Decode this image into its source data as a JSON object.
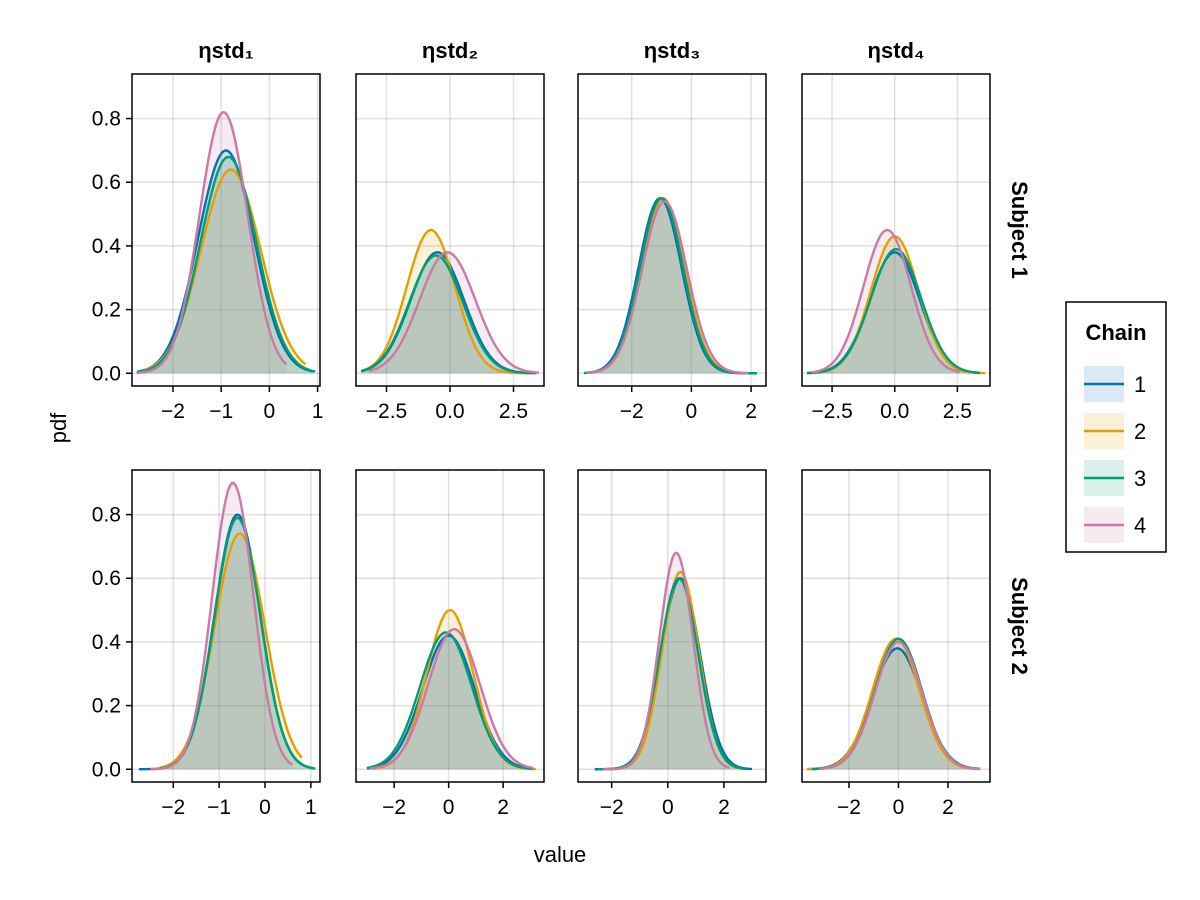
{
  "chart_data": {
    "type": "area",
    "xlabel": "value",
    "ylabel": "pdf",
    "legend": {
      "title": "Chain",
      "position": "right",
      "entries": [
        "1",
        "2",
        "3",
        "4"
      ]
    },
    "colors": {
      "1": "#0072b2",
      "2": "#e69f00",
      "3": "#009e73",
      "4": "#cc79a7"
    },
    "grid": true,
    "columns": [
      "ηstd₁",
      "ηstd₂",
      "ηstd₃",
      "ηstd₄"
    ],
    "rows": [
      "Subject 1",
      "Subject 2"
    ],
    "y_ticks": [
      "0.0",
      "0.2",
      "0.4",
      "0.6",
      "0.8"
    ],
    "ylim": [
      -0.04,
      0.94
    ],
    "panels": [
      {
        "row": 0,
        "col": 0,
        "xlim": [
          -2.85,
          1.05
        ],
        "xticks": [
          -2,
          -1,
          0,
          1
        ],
        "xtick_labels": [
          "−2",
          "−1",
          "0",
          "1"
        ],
        "series": [
          {
            "name": "1",
            "mean": -0.9,
            "sd": 0.58,
            "peak": 0.7,
            "x": [
              -2.75,
              0.9
            ]
          },
          {
            "name": "2",
            "mean": -0.8,
            "sd": 0.62,
            "peak": 0.64,
            "x": [
              -2.6,
              0.75
            ]
          },
          {
            "name": "3",
            "mean": -0.85,
            "sd": 0.58,
            "peak": 0.68,
            "x": [
              -2.7,
              0.95
            ]
          },
          {
            "name": "4",
            "mean": -0.95,
            "sd": 0.5,
            "peak": 0.82,
            "x": [
              -2.75,
              0.35
            ]
          }
        ]
      },
      {
        "row": 0,
        "col": 1,
        "xlim": [
          -3.7,
          3.7
        ],
        "xticks": [
          -2.5,
          0,
          2.5
        ],
        "xtick_labels": [
          "−2.5",
          "0.0",
          "2.5"
        ],
        "series": [
          {
            "name": "1",
            "mean": -0.5,
            "sd": 1.05,
            "peak": 0.38,
            "x": [
              -3.5,
              3.4
            ]
          },
          {
            "name": "2",
            "mean": -0.75,
            "sd": 0.95,
            "peak": 0.45,
            "x": [
              -3.4,
              3.1
            ]
          },
          {
            "name": "3",
            "mean": -0.55,
            "sd": 1.05,
            "peak": 0.37,
            "x": [
              -3.5,
              3.3
            ]
          },
          {
            "name": "4",
            "mean": -0.1,
            "sd": 1.1,
            "peak": 0.38,
            "x": [
              -3.2,
              3.5
            ]
          }
        ]
      },
      {
        "row": 0,
        "col": 2,
        "xlim": [
          -3.8,
          2.5
        ],
        "xticks": [
          -2,
          0,
          2
        ],
        "xtick_labels": [
          "−2",
          "0",
          "2"
        ],
        "series": [
          {
            "name": "1",
            "mean": -1.05,
            "sd": 0.72,
            "peak": 0.55,
            "x": [
              -3.5,
              2.2
            ]
          },
          {
            "name": "2",
            "mean": -0.95,
            "sd": 0.72,
            "peak": 0.55,
            "x": [
              -3.4,
              2.0
            ]
          },
          {
            "name": "3",
            "mean": -1.0,
            "sd": 0.72,
            "peak": 0.55,
            "x": [
              -3.6,
              2.2
            ]
          },
          {
            "name": "4",
            "mean": -0.9,
            "sd": 0.75,
            "peak": 0.54,
            "x": [
              -3.5,
              1.9
            ]
          }
        ]
      },
      {
        "row": 0,
        "col": 3,
        "xlim": [
          -3.7,
          3.8
        ],
        "xticks": [
          -2.5,
          0,
          2.5
        ],
        "xtick_labels": [
          "−2.5",
          "0.0",
          "2.5"
        ],
        "series": [
          {
            "name": "1",
            "mean": 0.0,
            "sd": 1.0,
            "peak": 0.38,
            "x": [
              -3.5,
              3.4
            ]
          },
          {
            "name": "2",
            "mean": 0.0,
            "sd": 0.95,
            "peak": 0.43,
            "x": [
              -3.4,
              3.6
            ]
          },
          {
            "name": "3",
            "mean": 0.05,
            "sd": 1.0,
            "peak": 0.39,
            "x": [
              -3.5,
              3.4
            ]
          },
          {
            "name": "4",
            "mean": -0.3,
            "sd": 0.95,
            "peak": 0.45,
            "x": [
              -3.3,
              2.6
            ]
          }
        ]
      },
      {
        "row": 1,
        "col": 0,
        "xlim": [
          -2.9,
          1.2
        ],
        "xticks": [
          -2,
          -1,
          0,
          1
        ],
        "xtick_labels": [
          "−2",
          "−1",
          "0",
          "1"
        ],
        "series": [
          {
            "name": "1",
            "mean": -0.6,
            "sd": 0.5,
            "peak": 0.8,
            "x": [
              -2.75,
              1.05
            ]
          },
          {
            "name": "2",
            "mean": -0.55,
            "sd": 0.55,
            "peak": 0.74,
            "x": [
              -2.3,
              0.8
            ]
          },
          {
            "name": "3",
            "mean": -0.6,
            "sd": 0.5,
            "peak": 0.79,
            "x": [
              -2.4,
              1.1
            ]
          },
          {
            "name": "4",
            "mean": -0.7,
            "sd": 0.45,
            "peak": 0.9,
            "x": [
              -2.5,
              0.6
            ]
          }
        ]
      },
      {
        "row": 1,
        "col": 1,
        "xlim": [
          -3.4,
          3.5
        ],
        "xticks": [
          -2,
          0,
          2
        ],
        "xtick_labels": [
          "−2",
          "0",
          "2"
        ],
        "series": [
          {
            "name": "1",
            "mean": 0.0,
            "sd": 0.95,
            "peak": 0.42,
            "x": [
              -3.0,
              3.0
            ]
          },
          {
            "name": "2",
            "mean": 0.05,
            "sd": 0.85,
            "peak": 0.5,
            "x": [
              -2.8,
              3.2
            ]
          },
          {
            "name": "3",
            "mean": -0.1,
            "sd": 0.95,
            "peak": 0.43,
            "x": [
              -3.0,
              3.1
            ]
          },
          {
            "name": "4",
            "mean": 0.2,
            "sd": 0.95,
            "peak": 0.44,
            "x": [
              -2.9,
              3.1
            ]
          }
        ]
      },
      {
        "row": 1,
        "col": 2,
        "xlim": [
          -3.2,
          3.5
        ],
        "xticks": [
          -2,
          0,
          2
        ],
        "xtick_labels": [
          "−2",
          "0",
          "2"
        ],
        "series": [
          {
            "name": "1",
            "mean": 0.45,
            "sd": 0.7,
            "peak": 0.6,
            "x": [
              -2.6,
              3.0
            ]
          },
          {
            "name": "2",
            "mean": 0.45,
            "sd": 0.65,
            "peak": 0.62,
            "x": [
              -2.4,
              2.7
            ]
          },
          {
            "name": "3",
            "mean": 0.4,
            "sd": 0.68,
            "peak": 0.6,
            "x": [
              -2.5,
              2.8
            ]
          },
          {
            "name": "4",
            "mean": 0.3,
            "sd": 0.6,
            "peak": 0.68,
            "x": [
              -2.3,
              2.2
            ]
          }
        ]
      },
      {
        "row": 1,
        "col": 3,
        "xlim": [
          -3.9,
          3.7
        ],
        "xticks": [
          -2,
          0,
          2
        ],
        "xtick_labels": [
          "−2",
          "0",
          "2"
        ],
        "series": [
          {
            "name": "1",
            "mean": -0.05,
            "sd": 1.0,
            "peak": 0.38,
            "x": [
              -3.6,
              3.3
            ]
          },
          {
            "name": "2",
            "mean": -0.1,
            "sd": 0.95,
            "peak": 0.41,
            "x": [
              -3.7,
              3.0
            ]
          },
          {
            "name": "3",
            "mean": 0.0,
            "sd": 0.95,
            "peak": 0.41,
            "x": [
              -3.5,
              3.2
            ]
          },
          {
            "name": "4",
            "mean": 0.0,
            "sd": 0.95,
            "peak": 0.4,
            "x": [
              -3.2,
              3.3
            ]
          }
        ]
      }
    ]
  }
}
